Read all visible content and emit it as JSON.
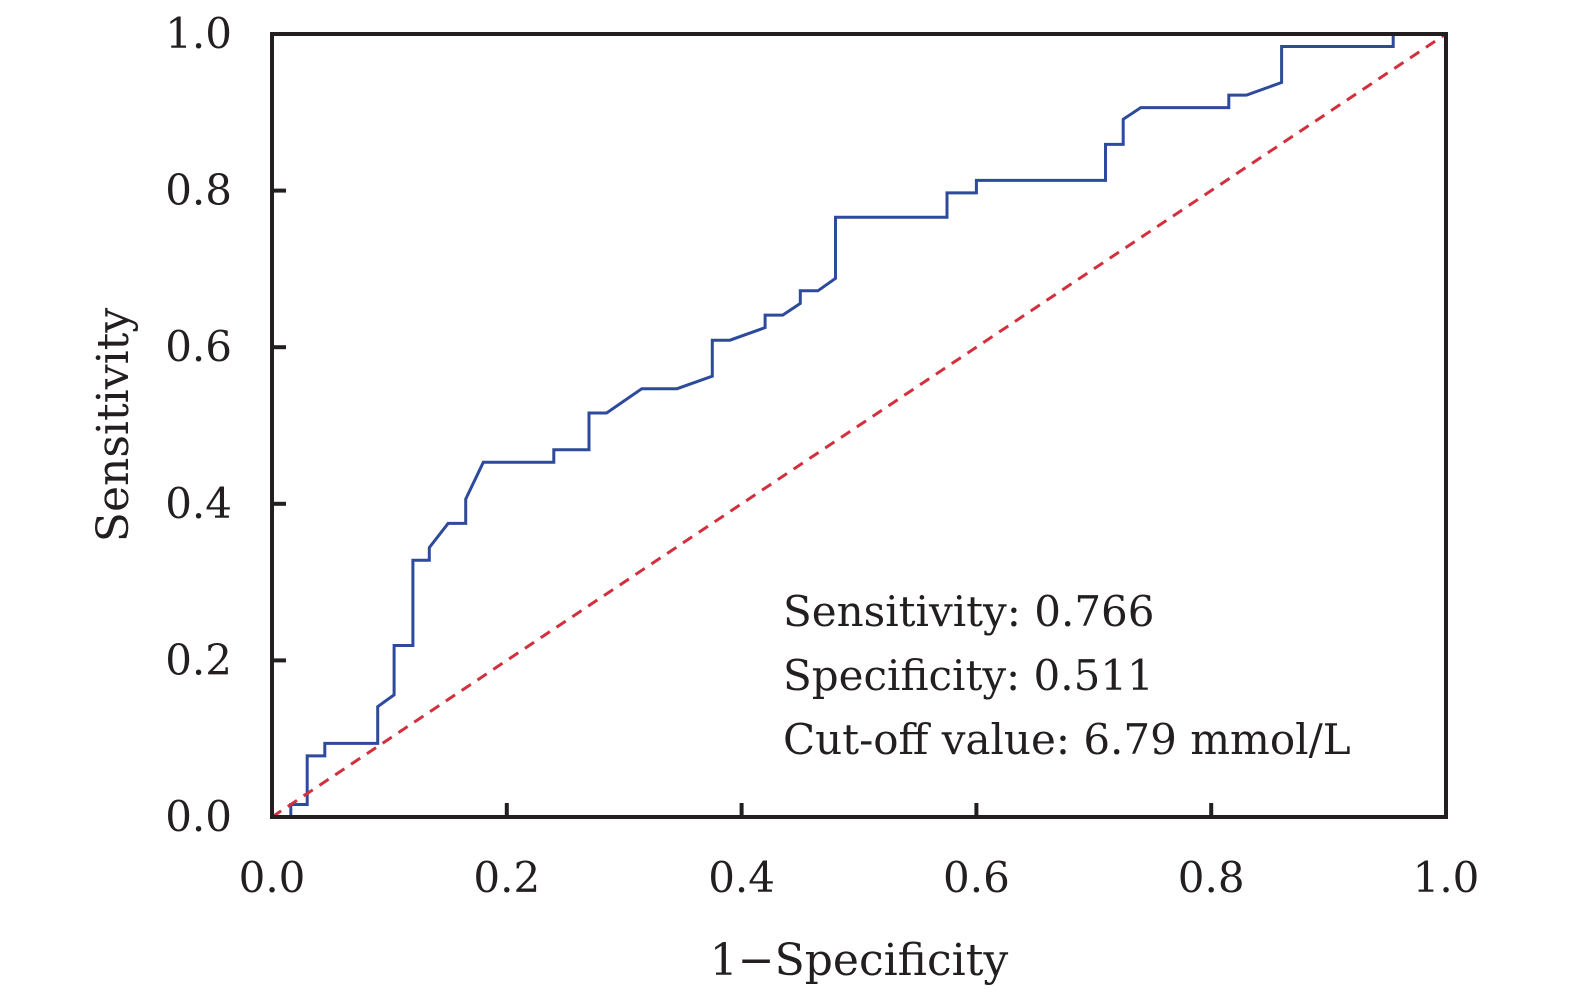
{
  "chart_data": {
    "type": "line",
    "title": "",
    "xlabel": "1−Specificity",
    "ylabel": "Sensitivity",
    "xlim": [
      0,
      1
    ],
    "ylim": [
      0,
      1
    ],
    "x_ticks": [
      "0.0",
      "0.2",
      "0.4",
      "0.6",
      "0.8",
      "1.0"
    ],
    "y_ticks": [
      "0.0",
      "0.2",
      "0.4",
      "0.6",
      "0.8",
      "1.0"
    ],
    "grid": false,
    "legend": "none",
    "annotations": [
      "Sensitivity: 0.766",
      "Specificity: 0.511",
      "Cut-off value: 6.79 mmol/L"
    ],
    "series": [
      {
        "color": "#2e4a9b",
        "style": "solid",
        "points": [
          [
            0.0,
            0.0
          ],
          [
            0.016,
            0.0
          ],
          [
            0.016,
            0.016
          ],
          [
            0.03,
            0.016
          ],
          [
            0.03,
            0.078
          ],
          [
            0.045,
            0.078
          ],
          [
            0.045,
            0.094
          ],
          [
            0.09,
            0.094
          ],
          [
            0.09,
            0.141
          ],
          [
            0.104,
            0.156
          ],
          [
            0.104,
            0.219
          ],
          [
            0.12,
            0.219
          ],
          [
            0.12,
            0.328
          ],
          [
            0.134,
            0.328
          ],
          [
            0.134,
            0.344
          ],
          [
            0.15,
            0.375
          ],
          [
            0.165,
            0.375
          ],
          [
            0.165,
            0.406
          ],
          [
            0.18,
            0.453
          ],
          [
            0.24,
            0.453
          ],
          [
            0.24,
            0.469
          ],
          [
            0.27,
            0.469
          ],
          [
            0.27,
            0.516
          ],
          [
            0.285,
            0.516
          ],
          [
            0.315,
            0.547
          ],
          [
            0.345,
            0.547
          ],
          [
            0.375,
            0.563
          ],
          [
            0.375,
            0.609
          ],
          [
            0.39,
            0.609
          ],
          [
            0.42,
            0.625
          ],
          [
            0.42,
            0.641
          ],
          [
            0.435,
            0.641
          ],
          [
            0.45,
            0.656
          ],
          [
            0.45,
            0.672
          ],
          [
            0.465,
            0.672
          ],
          [
            0.48,
            0.688
          ],
          [
            0.48,
            0.766
          ],
          [
            0.575,
            0.766
          ],
          [
            0.575,
            0.797
          ],
          [
            0.6,
            0.797
          ],
          [
            0.6,
            0.813
          ],
          [
            0.71,
            0.813
          ],
          [
            0.71,
            0.859
          ],
          [
            0.725,
            0.859
          ],
          [
            0.725,
            0.891
          ],
          [
            0.74,
            0.906
          ],
          [
            0.815,
            0.906
          ],
          [
            0.815,
            0.922
          ],
          [
            0.83,
            0.922
          ],
          [
            0.86,
            0.938
          ],
          [
            0.86,
            0.984
          ],
          [
            0.955,
            0.984
          ],
          [
            0.955,
            1.0
          ],
          [
            1.0,
            1.0
          ]
        ]
      },
      {
        "color": "#d32f3c",
        "style": "dashed",
        "points": [
          [
            0,
            0
          ],
          [
            1,
            1
          ]
        ]
      }
    ]
  }
}
